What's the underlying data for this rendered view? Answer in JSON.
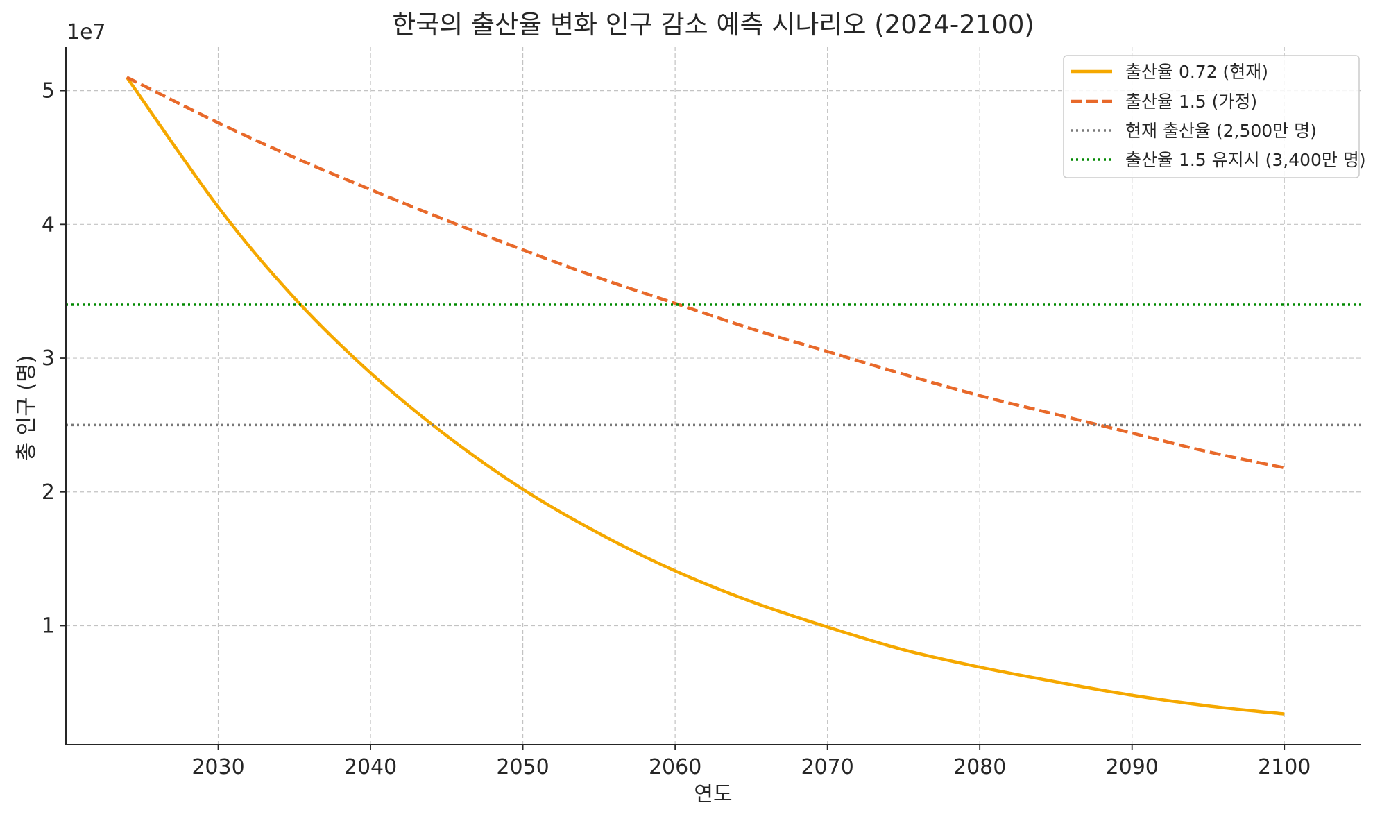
{
  "chart_data": {
    "type": "line",
    "title": "한국의 출산율 변화 인구 감소 예측 시나리오 (2024-2100)",
    "xlabel": "연도",
    "ylabel": "총 인구 (명)",
    "y_offset_label": "1e7",
    "xlim": [
      2020,
      2105
    ],
    "ylim": [
      1100000,
      53300000
    ],
    "x_ticks": [
      2030,
      2040,
      2050,
      2060,
      2070,
      2080,
      2090,
      2100
    ],
    "y_ticks": [
      10000000,
      20000000,
      30000000,
      40000000,
      50000000
    ],
    "y_tick_labels": [
      "1",
      "2",
      "3",
      "4",
      "5"
    ],
    "grid": true,
    "legend_position": "top-right",
    "series": [
      {
        "name": "출산율 0.72 (현재)",
        "style": "solid",
        "color": "#f5a800",
        "x": [
          2024,
          2030,
          2035,
          2040,
          2045,
          2050,
          2055,
          2060,
          2065,
          2070,
          2075,
          2080,
          2085,
          2090,
          2095,
          2100
        ],
        "values": [
          51000000,
          41300000,
          34500000,
          28900000,
          24200000,
          20200000,
          16900000,
          14100000,
          11800000,
          9900000,
          8200000,
          6900000,
          5800000,
          4800000,
          4000000,
          3400000
        ]
      },
      {
        "name": "출산율 1.5 (가정)",
        "style": "dashed",
        "color": "#e8692a",
        "x": [
          2024,
          2030,
          2035,
          2040,
          2045,
          2050,
          2055,
          2060,
          2065,
          2070,
          2075,
          2080,
          2085,
          2090,
          2095,
          2100
        ],
        "values": [
          51000000,
          47600000,
          45000000,
          42600000,
          40300000,
          38100000,
          36000000,
          34100000,
          32200000,
          30500000,
          28800000,
          27200000,
          25800000,
          24400000,
          23000000,
          21800000
        ]
      },
      {
        "name": "현재 출산율 (2,500만 명)",
        "style": "dotted",
        "color": "#7a7a7a",
        "type": "hline",
        "value": 25000000
      },
      {
        "name": "출산율 1.5 유지시 (3,400만 명)",
        "style": "dotted",
        "color": "#008800",
        "type": "hline",
        "value": 34000000
      }
    ]
  }
}
